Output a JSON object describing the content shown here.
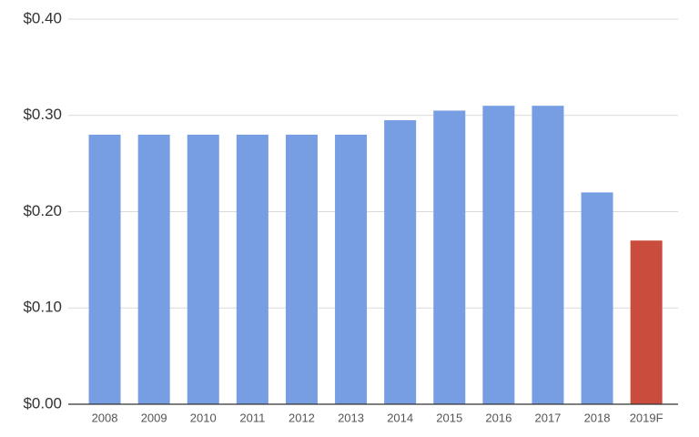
{
  "chart_data": {
    "type": "bar",
    "categories": [
      "2008",
      "2009",
      "2010",
      "2011",
      "2012",
      "2013",
      "2014",
      "2015",
      "2016",
      "2017",
      "2018",
      "2019F"
    ],
    "values": [
      0.28,
      0.28,
      0.28,
      0.28,
      0.28,
      0.28,
      0.295,
      0.305,
      0.31,
      0.31,
      0.22,
      0.17
    ],
    "colors": [
      "#779ee3",
      "#779ee3",
      "#779ee3",
      "#779ee3",
      "#779ee3",
      "#779ee3",
      "#779ee3",
      "#779ee3",
      "#779ee3",
      "#779ee3",
      "#779ee3",
      "#c94c3c"
    ],
    "ylim": [
      0,
      0.4
    ],
    "yticks": [
      {
        "value": 0,
        "label": "$0.00"
      },
      {
        "value": 0.1,
        "label": "$0.10"
      },
      {
        "value": 0.2,
        "label": "$0.20"
      },
      {
        "value": 0.3,
        "label": "$0.30"
      },
      {
        "value": 0.4,
        "label": "$0.40"
      }
    ],
    "grid": true
  }
}
